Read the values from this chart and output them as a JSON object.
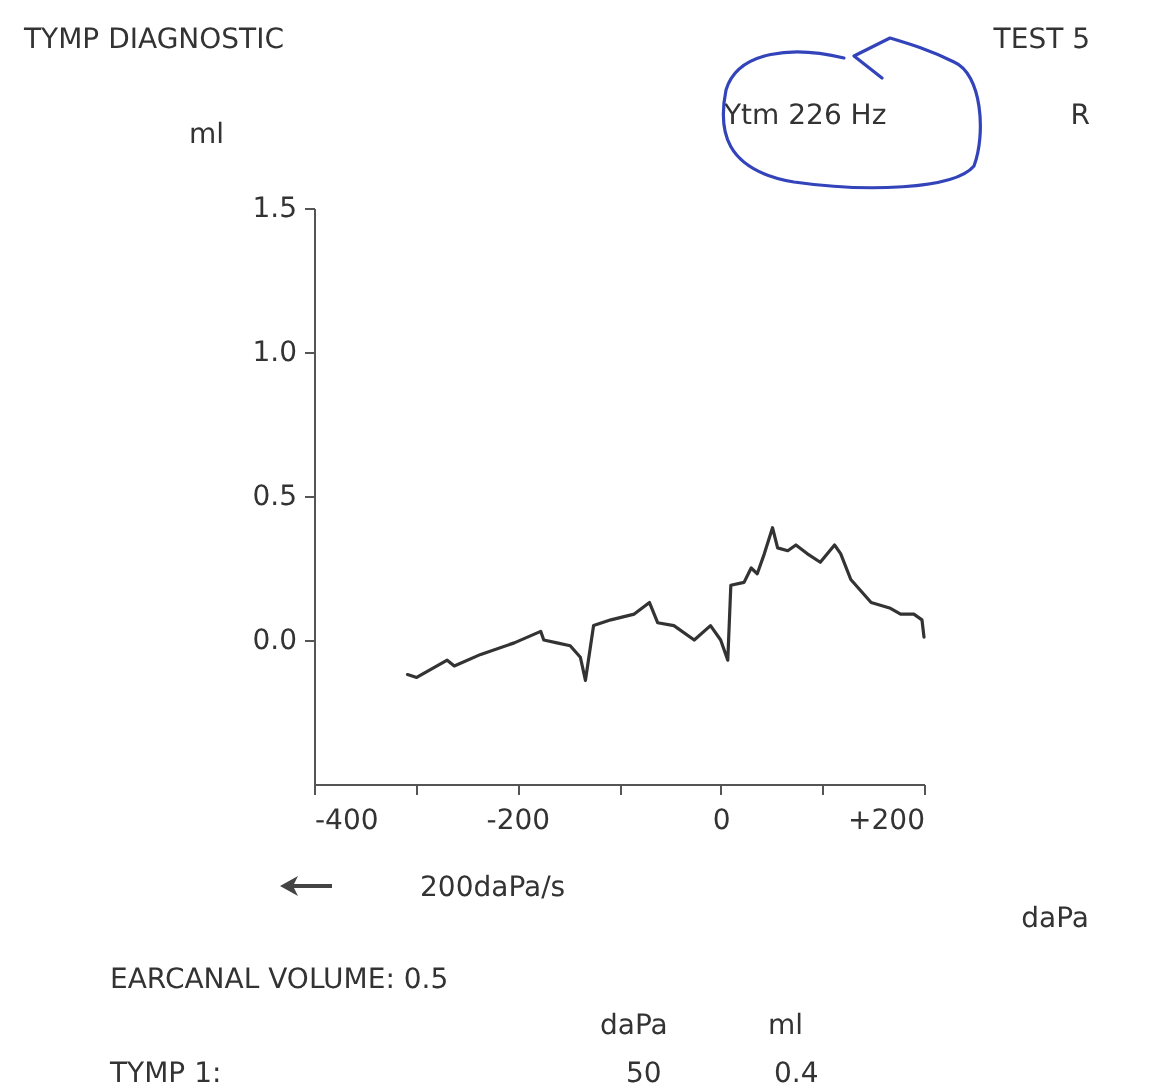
{
  "chart_data": {
    "type": "line",
    "title": "TYMP DIAGNOSTIC",
    "xlabel": "daPa",
    "ylabel": "ml",
    "annotations": [
      "TEST 5",
      "Ytm 226 Hz",
      "R",
      "200daPa/s",
      "EARCANAL VOLUME: 0.5",
      "daPa",
      "ml",
      "TYMP 1:",
      "50",
      "0.4"
    ],
    "x": [
      -308,
      -299,
      -269,
      -262,
      -236,
      -203,
      -177,
      -174,
      -161,
      -148,
      -138,
      -133,
      -125,
      -108,
      -85,
      -70,
      -62,
      -46,
      -26,
      -10,
      0,
      7,
      10,
      23,
      30,
      36,
      43,
      51,
      56,
      66,
      74,
      85,
      98,
      112,
      118,
      128,
      148,
      167,
      177,
      190,
      198,
      200
    ],
    "series": [
      {
        "color": "#333333",
        "values": [
          -0.12,
          -0.13,
          -0.07,
          -0.09,
          -0.05,
          -0.01,
          0.03,
          0.0,
          -0.01,
          -0.02,
          -0.06,
          -0.14,
          0.05,
          0.07,
          0.09,
          0.13,
          0.06,
          0.05,
          0.0,
          0.05,
          0.0,
          -0.07,
          0.19,
          0.2,
          0.25,
          0.23,
          0.3,
          0.39,
          0.32,
          0.31,
          0.33,
          0.3,
          0.27,
          0.33,
          0.3,
          0.21,
          0.13,
          0.11,
          0.09,
          0.09,
          0.07,
          0.01
        ]
      }
    ],
    "xlim": [
      -400,
      200
    ],
    "xticks": [
      -400,
      {
        "value": -300,
        "label": null
      },
      -200,
      {
        "value": -100,
        "label": null
      },
      0,
      {
        "value": 100,
        "label": null
      },
      {
        "value": 200,
        "label": "+200"
      }
    ],
    "ylim": [
      -0.5,
      1.5
    ],
    "yticks": [
      {
        "value": 0,
        "label": "0.0"
      },
      0.5,
      {
        "value": 1,
        "label": "1.0"
      },
      1.5
    ],
    "grid": false,
    "legend": false,
    "marker": "none",
    "line_style": "solid"
  }
}
